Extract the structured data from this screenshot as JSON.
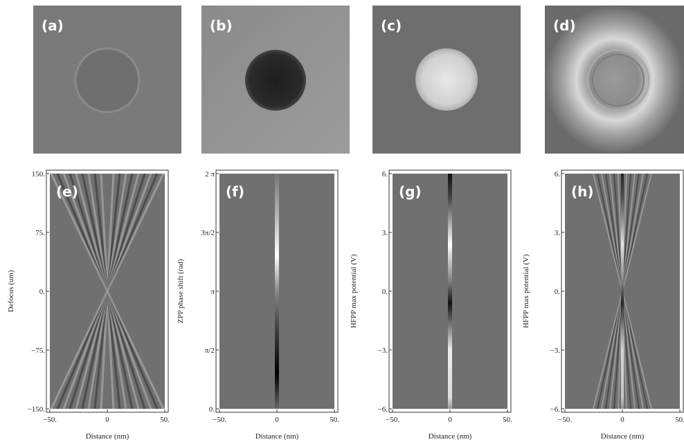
{
  "panels": [
    {
      "label": "(a)"
    },
    {
      "label": "(b)"
    },
    {
      "label": "(c)"
    },
    {
      "label": "(d)"
    }
  ],
  "plots": [
    {
      "label": "(e)",
      "ylabel": "Defocus (um)",
      "xlabel": "Distance (nm)",
      "xlim": [
        -50,
        50
      ],
      "xticks": [
        {
          "value": -50,
          "label": "−50."
        },
        0,
        {
          "value": 50,
          "label": "50."
        }
      ],
      "ylim": [
        -150,
        150
      ],
      "yticks": [
        {
          "value": -150,
          "label": "−150."
        },
        {
          "value": -75,
          "label": "−75."
        },
        {
          "value": 0,
          "label": "0."
        },
        {
          "value": 75,
          "label": "75."
        },
        {
          "value": 150,
          "label": "150."
        }
      ]
    },
    {
      "label": "(f)",
      "ylabel": "ZPP phase shift (rad)",
      "xlabel": "Distance (nm)",
      "xlim": [
        -50,
        50
      ],
      "xticks": [
        {
          "value": -50,
          "label": "−50."
        },
        0,
        {
          "value": 50,
          "label": "50."
        }
      ],
      "ylim": [
        0,
        6.2832
      ],
      "yticks": [
        {
          "value": 0,
          "label": "0."
        },
        {
          "value": 1.5708,
          "label": "π/2"
        },
        {
          "value": 3.1416,
          "label": "π"
        },
        {
          "value": 4.7124,
          "label": "3π/2"
        },
        {
          "value": 6.2832,
          "label": "2 π"
        }
      ]
    },
    {
      "label": "(g)",
      "ylabel": "HFPP max potential (V)",
      "xlabel": "Distance (nm)",
      "xlim": [
        -50,
        50
      ],
      "xticks": [
        {
          "value": -50,
          "label": "−50."
        },
        0,
        {
          "value": 50,
          "label": "50."
        }
      ],
      "ylim": [
        -6,
        6
      ],
      "yticks": [
        {
          "value": -6,
          "label": "−6."
        },
        {
          "value": -3,
          "label": "−3."
        },
        {
          "value": 0,
          "label": "0."
        },
        {
          "value": 3,
          "label": "3."
        },
        {
          "value": 6,
          "label": "6."
        }
      ]
    },
    {
      "label": "(h)",
      "ylabel": "HFPP max potential (V)",
      "xlabel": "Distance (nm)",
      "xlim": [
        -50,
        50
      ],
      "xticks": [
        {
          "value": -50,
          "label": "−50."
        },
        0,
        {
          "value": 50,
          "label": "50."
        }
      ],
      "ylim": [
        -6,
        6
      ],
      "yticks": [
        {
          "value": -6,
          "label": "−6."
        },
        {
          "value": -3,
          "label": "−3."
        },
        {
          "value": 0,
          "label": "0."
        },
        {
          "value": 3,
          "label": "3."
        },
        {
          "value": 6,
          "label": "6."
        }
      ]
    }
  ]
}
